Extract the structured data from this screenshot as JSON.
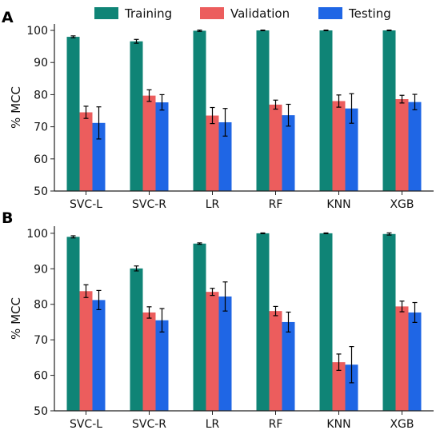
{
  "legend": [
    {
      "name": "Training",
      "color": "#0f8476"
    },
    {
      "name": "Validation",
      "color": "#ec5d5d"
    },
    {
      "name": "Testing",
      "color": "#1f66e5"
    }
  ],
  "chart_data": [
    {
      "type": "bar",
      "panel_label": "A",
      "categories": [
        "SVC-L",
        "SVC-R",
        "LR",
        "RF",
        "KNN",
        "XGB"
      ],
      "ylabel": "% MCC",
      "ylim": [
        50,
        102
      ],
      "yticks": [
        50,
        60,
        70,
        80,
        90,
        100
      ],
      "series": [
        {
          "name": "Training",
          "values": [
            98.0,
            96.6,
            99.9,
            100.0,
            100.0,
            100.0
          ],
          "errors": [
            0.3,
            0.6,
            0.2,
            0.1,
            0.1,
            0.1
          ]
        },
        {
          "name": "Validation",
          "values": [
            74.5,
            79.7,
            73.5,
            76.9,
            78.0,
            78.6
          ],
          "errors": [
            1.9,
            1.8,
            2.5,
            1.4,
            1.9,
            1.2
          ]
        },
        {
          "name": "Testing",
          "values": [
            71.2,
            77.6,
            71.4,
            73.6,
            75.7,
            77.7
          ],
          "errors": [
            5.0,
            2.4,
            4.3,
            3.4,
            4.6,
            2.4
          ]
        }
      ]
    },
    {
      "type": "bar",
      "panel_label": "B",
      "categories": [
        "SVC-L",
        "SVC-R",
        "LR",
        "RF",
        "KNN",
        "XGB"
      ],
      "ylabel": "% MCC",
      "ylim": [
        50,
        102
      ],
      "yticks": [
        50,
        60,
        70,
        80,
        90,
        100
      ],
      "series": [
        {
          "name": "Training",
          "values": [
            99.0,
            90.1,
            97.1,
            100.0,
            100.0,
            99.8
          ],
          "errors": [
            0.3,
            0.7,
            0.2,
            0.1,
            0.1,
            0.3
          ]
        },
        {
          "name": "Validation",
          "values": [
            83.7,
            77.7,
            83.5,
            78.1,
            63.7,
            79.4
          ],
          "errors": [
            1.8,
            1.6,
            1.0,
            1.3,
            2.3,
            1.5
          ]
        },
        {
          "name": "Testing",
          "values": [
            81.2,
            75.5,
            82.2,
            75.0,
            63.0,
            77.7
          ],
          "errors": [
            2.7,
            3.3,
            4.1,
            2.8,
            5.1,
            2.8
          ]
        }
      ]
    }
  ]
}
